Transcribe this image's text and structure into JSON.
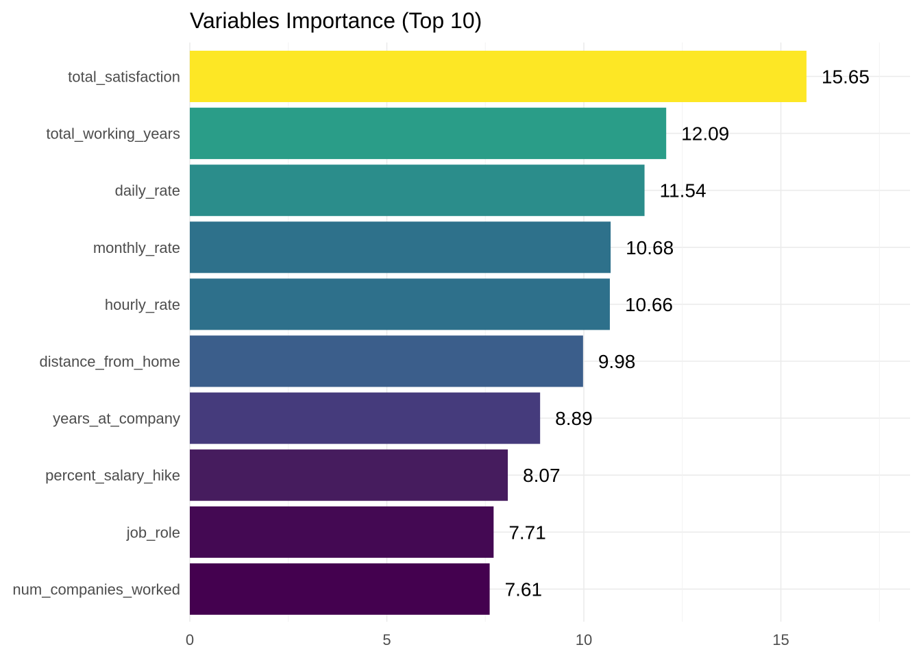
{
  "chart_data": {
    "type": "bar",
    "orientation": "horizontal",
    "title": "Variables Importance (Top 10)",
    "xlabel": "",
    "ylabel": "",
    "xlim": [
      0,
      17.5
    ],
    "x_ticks": [
      0,
      5,
      10,
      15
    ],
    "x_tick_labels": [
      "0",
      "5",
      "10",
      "15"
    ],
    "grid": true,
    "legend": "none",
    "categories": [
      "total_satisfaction",
      "total_working_years",
      "daily_rate",
      "monthly_rate",
      "hourly_rate",
      "distance_from_home",
      "years_at_company",
      "percent_salary_hike",
      "job_role",
      "num_companies_worked"
    ],
    "values": [
      15.65,
      12.09,
      11.54,
      10.68,
      10.66,
      9.98,
      8.89,
      8.07,
      7.71,
      7.61
    ],
    "value_labels": [
      "15.65",
      "12.09",
      "11.54",
      "10.68",
      "10.66",
      "9.98",
      "8.89",
      "8.07",
      "7.71",
      "7.61"
    ],
    "colors": [
      "#fde725",
      "#2a9d88",
      "#2b8d8b",
      "#2e718b",
      "#2e708b",
      "#3b5e8b",
      "#453b7c",
      "#461c5e",
      "#440953",
      "#44014f"
    ]
  }
}
